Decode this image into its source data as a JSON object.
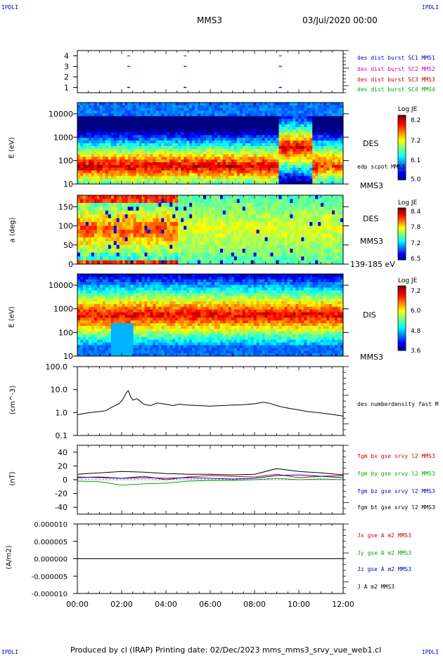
{
  "corners": {
    "top_left": "IPDLI",
    "top_right": "IPDLI",
    "bottom_left": "IPDLI",
    "bottom_right": "IPDLI"
  },
  "header": {
    "title": "MMS3",
    "date": "03/Jul/2020 00:00"
  },
  "footer": {
    "text": "Produced by cl (IRAP)   Printing date: 02/Dec/2023   mms_mms3_srvy_vue_web1.cl"
  },
  "colors": {
    "c1": "#0000cc",
    "c2": "#cc00cc",
    "c3": "#cc0000",
    "c4": "#00aa00"
  },
  "chart_data": [
    {
      "type": "scatter",
      "name": "burst-availability",
      "ylim": [
        0.5,
        4.5
      ],
      "yticks": [
        "1",
        "2",
        "3",
        "4"
      ],
      "legend": [
        "des dist burst SC1 MMS1",
        "des dist burst SC2 MMS2",
        "des dist burst SC3 MMS3",
        "des dist burst SC4 MMS4"
      ],
      "markers_hours": [
        2.25,
        4.8,
        9.1
      ]
    },
    {
      "type": "heatmap",
      "name": "des-energy",
      "ylabel": "E (eV)",
      "yscale": "log",
      "ylim": [
        10,
        30000
      ],
      "yticks": [
        "10",
        "100",
        "1000",
        "10000"
      ],
      "instrument": "DES",
      "spacecraft": "MMS3",
      "overlay": "edp scpot MMS3",
      "colorbar": {
        "label": "Log JE",
        "min": 5.0,
        "max": 8.2,
        "ticks": [
          "8.2",
          "7.2",
          "6.1",
          "5.0"
        ]
      }
    },
    {
      "type": "heatmap",
      "name": "des-pitch-angle",
      "ylabel": "a (deg)",
      "ylim": [
        0,
        180
      ],
      "yticks": [
        "0",
        "50",
        "100",
        "150"
      ],
      "instrument": "DES",
      "spacecraft": "MMS3",
      "energy_range": "139-185 eV",
      "colorbar": {
        "label": "Log JE",
        "min": 6.5,
        "max": 8.4,
        "ticks": [
          "8.4",
          "7.8",
          "7.2",
          "6.5"
        ]
      }
    },
    {
      "type": "heatmap",
      "name": "dis-energy",
      "ylabel": "E (eV)",
      "yscale": "log",
      "ylim": [
        10,
        30000
      ],
      "yticks": [
        "10",
        "100",
        "1000",
        "10000"
      ],
      "instrument": "DIS",
      "spacecraft": "MMS3",
      "colorbar": {
        "label": "Log JE",
        "min": 3.6,
        "max": 7.2,
        "ticks": [
          "7.2",
          "6.0",
          "4.8",
          "3.6"
        ]
      }
    },
    {
      "type": "line",
      "name": "density",
      "ylabel": "(cm^-3)",
      "yscale": "log",
      "ylim": [
        0.1,
        100
      ],
      "yticks": [
        "0.1",
        "1.0",
        "10.0",
        "100.0"
      ],
      "series": [
        {
          "name": "des numberdensity fast M",
          "color": "#000000",
          "x": [
            0,
            0.3,
            0.6,
            1.0,
            1.3,
            1.5,
            1.7,
            1.9,
            2.0,
            2.1,
            2.2,
            2.3,
            2.4,
            2.5,
            2.7,
            3.0,
            3.3,
            3.6,
            4.0,
            4.3,
            4.6,
            5.0,
            5.5,
            6.0,
            6.5,
            7.0,
            7.5,
            8.0,
            8.4,
            8.7,
            9.0,
            9.3,
            9.6,
            10.0,
            10.4,
            10.8,
            11.2,
            11.6,
            12.0
          ],
          "y": [
            0.8,
            0.9,
            1.0,
            1.1,
            1.2,
            1.6,
            2.0,
            2.5,
            3.2,
            4.5,
            7.0,
            9.0,
            5.0,
            3.5,
            4.0,
            2.3,
            2.0,
            2.6,
            2.3,
            2.0,
            2.3,
            2.1,
            2.0,
            1.9,
            2.0,
            2.1,
            2.2,
            2.4,
            2.8,
            2.5,
            2.0,
            1.7,
            1.5,
            1.3,
            1.1,
            1.0,
            0.9,
            0.8,
            0.7
          ]
        }
      ]
    },
    {
      "type": "line",
      "name": "magnetic-field",
      "ylabel": "(nT)",
      "ylim": [
        -50,
        50
      ],
      "yticks": [
        "-40",
        "-20",
        "0",
        "20",
        "40"
      ],
      "series": [
        {
          "name": "fgm bx gse srvy l2 MMS3",
          "color": "#cc0000",
          "x": [
            0,
            1,
            2,
            3,
            4,
            5,
            6,
            7,
            8,
            9,
            10,
            11,
            12
          ],
          "y": [
            4,
            3,
            2,
            5,
            0,
            4,
            6,
            5,
            4,
            8,
            3,
            5,
            6
          ]
        },
        {
          "name": "fgm by gse srvy l2 MMS3",
          "color": "#00aa00",
          "x": [
            0,
            1,
            2,
            3,
            4,
            5,
            6,
            7,
            8,
            9,
            10,
            11,
            12
          ],
          "y": [
            -2,
            -3,
            -8,
            -6,
            -5,
            -2,
            -1,
            -1,
            0,
            2,
            0,
            1,
            0
          ]
        },
        {
          "name": "fgm bz gse srvy l2 MMS3",
          "color": "#0000cc",
          "x": [
            0,
            1,
            2,
            3,
            4,
            5,
            6,
            7,
            8,
            9,
            10,
            11,
            12
          ],
          "y": [
            3,
            4,
            2,
            3,
            2,
            3,
            2,
            1,
            2,
            6,
            7,
            5,
            3
          ]
        },
        {
          "name": "fgm bt gse srvy l2 MMS3",
          "color": "#000000",
          "x": [
            0,
            1,
            2,
            3,
            4,
            5,
            6,
            7,
            8,
            9,
            10,
            11,
            12
          ],
          "y": [
            8,
            10,
            12,
            11,
            9,
            8,
            8,
            7,
            8,
            16,
            12,
            10,
            7
          ]
        }
      ]
    },
    {
      "type": "line",
      "name": "current-density",
      "ylabel": "(A/m2)",
      "ylim": [
        -1e-05,
        1e-05
      ],
      "yticks": [
        "-0.000010",
        "-0.000005",
        "0.000000",
        "0.000005",
        "0.000010"
      ],
      "series": [
        {
          "name": "Jx gse A m2 MMS3",
          "color": "#cc0000",
          "x": [
            0,
            12
          ],
          "y": [
            0,
            0
          ]
        },
        {
          "name": "Jy gse A m2 MMS3",
          "color": "#00aa00",
          "x": [
            0,
            12
          ],
          "y": [
            0,
            0
          ]
        },
        {
          "name": "Jz gse A m2 MMS3",
          "color": "#0000cc",
          "x": [
            0,
            12
          ],
          "y": [
            0,
            0
          ]
        },
        {
          "name": "J A m2 MMS3",
          "color": "#000000",
          "x": [
            0,
            12
          ],
          "y": [
            0,
            0
          ]
        }
      ]
    }
  ],
  "x_axis": {
    "range_hours": [
      0,
      12
    ],
    "ticks": [
      "00:00",
      "02:00",
      "04:00",
      "06:00",
      "08:00",
      "10:00",
      "12:00"
    ]
  }
}
